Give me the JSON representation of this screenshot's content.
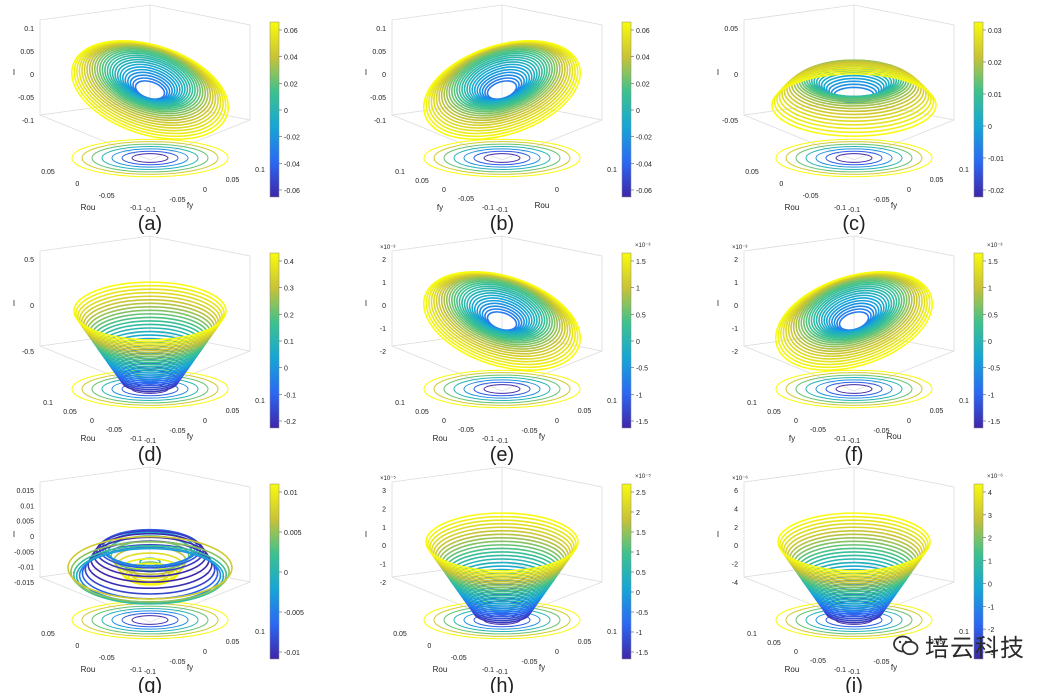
{
  "chart_data": [
    {
      "type": "surface3d",
      "label": "(a)",
      "shape": "saddle",
      "zticks": [
        "0.1",
        "0.05",
        "0",
        "-0.05",
        "-0.1"
      ],
      "zlabel": "I",
      "xticks": [
        "0.05",
        "0",
        "-0.05",
        "-0.1"
      ],
      "xlabel": "Rou",
      "yticks": [
        "-0.1",
        "-0.05",
        "0",
        "0.05",
        "0.1"
      ],
      "ylabel": "fy",
      "colorbar": {
        "ticks": [
          "0.06",
          "0.04",
          "0.02",
          "0",
          "-0.02",
          "-0.04",
          "-0.06"
        ],
        "exponent": ""
      }
    },
    {
      "type": "surface3d",
      "label": "(b)",
      "shape": "saddle",
      "zticks": [
        "0.1",
        "0.05",
        "0",
        "-0.05",
        "-0.1"
      ],
      "zlabel": "I",
      "xticks": [
        "0.1",
        "0.05",
        "0",
        "-0.05",
        "-0.1"
      ],
      "xlabel": "fy",
      "yticks": [
        "-0.1",
        "0",
        "0.1"
      ],
      "ylabel": "Rou",
      "colorbar": {
        "ticks": [
          "0.06",
          "0.04",
          "0.02",
          "0",
          "-0.02",
          "-0.04",
          "-0.06"
        ],
        "exponent": ""
      }
    },
    {
      "type": "surface3d",
      "label": "(c)",
      "shape": "ring",
      "zticks": [
        "0.05",
        "0",
        "-0.05"
      ],
      "zlabel": "I",
      "xticks": [
        "0.05",
        "0",
        "-0.05",
        "-0.1"
      ],
      "xlabel": "Rou",
      "yticks": [
        "-0.1",
        "-0.05",
        "0",
        "0.05",
        "0.1"
      ],
      "ylabel": "fy",
      "colorbar": {
        "ticks": [
          "0.03",
          "0.02",
          "0.01",
          "0",
          "-0.01",
          "-0.02"
        ],
        "exponent": ""
      }
    },
    {
      "type": "surface3d",
      "label": "(d)",
      "shape": "cup",
      "zticks": [
        "0.5",
        "0",
        "-0.5"
      ],
      "zlabel": "I",
      "xticks": [
        "0.1",
        "0.05",
        "0",
        "-0.05",
        "-0.1"
      ],
      "xlabel": "Rou",
      "yticks": [
        "-0.1",
        "-0.05",
        "0",
        "0.05",
        "0.1"
      ],
      "ylabel": "fy",
      "colorbar": {
        "ticks": [
          "0.4",
          "0.3",
          "0.2",
          "0.1",
          "0",
          "-0.1",
          "-0.2"
        ],
        "exponent": ""
      }
    },
    {
      "type": "surface3d",
      "label": "(e)",
      "shape": "saddle",
      "zticks": [
        "2",
        "1",
        "0",
        "-1",
        "-2"
      ],
      "zlabel": "I",
      "zexponent": "×10⁻³",
      "xticks": [
        "0.1",
        "0.05",
        "0",
        "-0.05",
        "-0.1"
      ],
      "xlabel": "Rou",
      "yticks": [
        "-0.1",
        "-0.05",
        "0",
        "0.05",
        "0.1"
      ],
      "ylabel": "fy",
      "colorbar": {
        "ticks": [
          "1.5",
          "1",
          "0.5",
          "0",
          "-0.5",
          "-1",
          "-1.5"
        ],
        "exponent": "×10⁻³"
      }
    },
    {
      "type": "surface3d",
      "label": "(f)",
      "shape": "saddle",
      "zticks": [
        "2",
        "1",
        "0",
        "-1",
        "-2"
      ],
      "zlabel": "I",
      "zexponent": "×10⁻³",
      "xticks": [
        "0.1",
        "0.05",
        "0",
        "-0.05",
        "-0.1"
      ],
      "xlabel": "fy",
      "yticks": [
        "-0.1",
        "-0.05",
        "0",
        "0.05",
        "0.1"
      ],
      "ylabel": "Rou",
      "colorbar": {
        "ticks": [
          "1.5",
          "1",
          "0.5",
          "0",
          "-0.5",
          "-1",
          "-1.5"
        ],
        "exponent": "×10⁻³"
      }
    },
    {
      "type": "surface3d",
      "label": "(g)",
      "shape": "wavy",
      "zticks": [
        "0.015",
        "0.01",
        "0.005",
        "0",
        "-0.005",
        "-0.01",
        "-0.015"
      ],
      "zlabel": "I",
      "xticks": [
        "0.05",
        "0",
        "-0.05",
        "-0.1"
      ],
      "xlabel": "Rou",
      "yticks": [
        "-0.1",
        "-0.05",
        "0",
        "0.05",
        "0.1"
      ],
      "ylabel": "fy",
      "colorbar": {
        "ticks": [
          "0.01",
          "0.005",
          "0",
          "-0.005",
          "-0.01"
        ],
        "exponent": ""
      }
    },
    {
      "type": "surface3d",
      "label": "(h)",
      "shape": "cup",
      "zticks": [
        "3",
        "2",
        "1",
        "0",
        "-1",
        "-2"
      ],
      "zlabel": "I",
      "zexponent": "×10⁻⁵",
      "xticks": [
        "0.05",
        "0",
        "-0.05",
        "-0.1"
      ],
      "xlabel": "Rou",
      "yticks": [
        "-0.1",
        "-0.05",
        "0",
        "0.05",
        "0.1"
      ],
      "ylabel": "fy",
      "colorbar": {
        "ticks": [
          "2.5",
          "2",
          "1.5",
          "1",
          "0.5",
          "0",
          "-0.5",
          "-1",
          "-1.5"
        ],
        "exponent": "×10⁻⁵"
      }
    },
    {
      "type": "surface3d",
      "label": "(i)",
      "shape": "cup",
      "zticks": [
        "6",
        "4",
        "2",
        "0",
        "-2",
        "-4"
      ],
      "zlabel": "I",
      "zexponent": "×10⁻⁶",
      "xticks": [
        "0.1",
        "0.05",
        "0",
        "-0.05",
        "-0.1"
      ],
      "xlabel": "Rou",
      "yticks": [
        "-0.1",
        "-0.05",
        "0",
        "0.05",
        "0.1"
      ],
      "ylabel": "fy",
      "colorbar": {
        "ticks": [
          "4",
          "3",
          "2",
          "1",
          "0",
          "-1",
          "-2",
          "-3"
        ],
        "exponent": "×10⁻⁶"
      }
    }
  ],
  "watermark": {
    "text": "培云科技",
    "icon": "wechat-icon"
  },
  "colors": {
    "low": "#3e26a8",
    "mid": "#14b5b5",
    "high": "#f9fb0e"
  }
}
